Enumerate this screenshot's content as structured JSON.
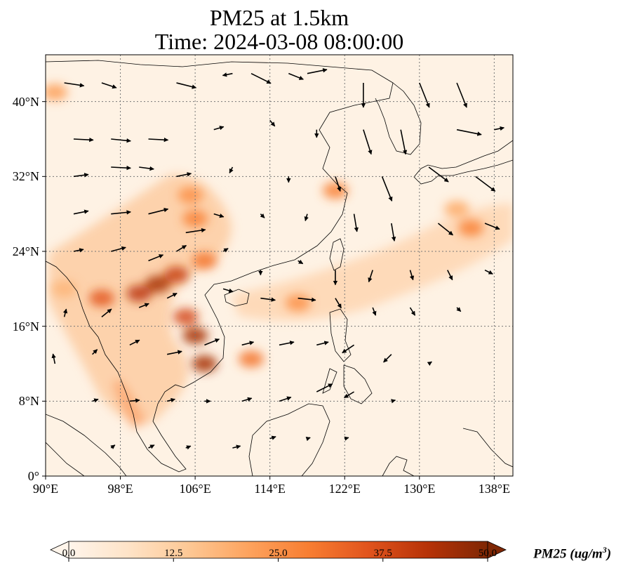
{
  "title": {
    "line1": "PM25 at 1.5km",
    "line2": "Time: 2024-03-08 08:00:00"
  },
  "map": {
    "extent": {
      "lon": [
        90,
        140
      ],
      "lat": [
        0,
        45
      ]
    },
    "lat_ticks": [
      {
        "value": 0,
        "label": "0°"
      },
      {
        "value": 8,
        "label": "8°N"
      },
      {
        "value": 16,
        "label": "16°N"
      },
      {
        "value": 24,
        "label": "24°N"
      },
      {
        "value": 32,
        "label": "32°N"
      },
      {
        "value": 40,
        "label": "40°N"
      }
    ],
    "lon_ticks": [
      {
        "value": 90,
        "label": "90°E"
      },
      {
        "value": 98,
        "label": "98°E"
      },
      {
        "value": 106,
        "label": "106°E"
      },
      {
        "value": 114,
        "label": "114°E"
      },
      {
        "value": 122,
        "label": "122°E"
      },
      {
        "value": 130,
        "label": "130°E"
      },
      {
        "value": 138,
        "label": "138°E"
      }
    ],
    "gridlines": true,
    "field": "PM25 concentration shaded, wind vectors overlaid",
    "pm25_hotspots": [
      {
        "lon": 102,
        "lat": 20.5,
        "value": 45
      },
      {
        "lon": 104,
        "lat": 21.5,
        "value": 40
      },
      {
        "lon": 100,
        "lat": 19.5,
        "value": 42
      },
      {
        "lon": 96,
        "lat": 19,
        "value": 35
      },
      {
        "lon": 106,
        "lat": 15,
        "value": 45
      },
      {
        "lon": 107,
        "lat": 12,
        "value": 45
      },
      {
        "lon": 105,
        "lat": 17,
        "value": 38
      },
      {
        "lon": 107,
        "lat": 23,
        "value": 30
      },
      {
        "lon": 106,
        "lat": 27.5,
        "value": 28
      },
      {
        "lon": 105.5,
        "lat": 30,
        "value": 25
      },
      {
        "lon": 121,
        "lat": 30.5,
        "value": 28
      },
      {
        "lon": 117,
        "lat": 18.5,
        "value": 25
      },
      {
        "lon": 112,
        "lat": 12.5,
        "value": 30
      },
      {
        "lon": 135.5,
        "lat": 26.5,
        "value": 28
      },
      {
        "lon": 134,
        "lat": 28.5,
        "value": 20
      },
      {
        "lon": 91,
        "lat": 41,
        "value": 22
      },
      {
        "lon": 92,
        "lat": 20,
        "value": 18
      }
    ],
    "wind_vectors": [
      [
        92,
        42,
        2,
        -0.3
      ],
      [
        96,
        42,
        1.5,
        -0.5
      ],
      [
        104,
        42,
        2,
        -0.5
      ],
      [
        110,
        43,
        -1,
        -0.2
      ],
      [
        116,
        43,
        1.5,
        -0.6
      ],
      [
        124,
        42,
        0,
        -2.5
      ],
      [
        130,
        42,
        1,
        -2.5
      ],
      [
        134,
        42,
        1,
        -2.5
      ],
      [
        118,
        43,
        2,
        0.4
      ],
      [
        112,
        43,
        2,
        -1
      ],
      [
        93,
        36,
        2,
        -0.1
      ],
      [
        97,
        36,
        2,
        -0.2
      ],
      [
        101,
        36,
        2,
        -0.1
      ],
      [
        108,
        37,
        1,
        0.3
      ],
      [
        114,
        38,
        0.5,
        -0.6
      ],
      [
        119,
        37,
        0,
        -0.8
      ],
      [
        124,
        37,
        0.8,
        -2.5
      ],
      [
        128,
        37,
        0.5,
        -2.5
      ],
      [
        134,
        37,
        2.5,
        -0.5
      ],
      [
        138,
        37,
        1,
        0.2
      ],
      [
        93,
        32,
        1.5,
        0.2
      ],
      [
        97,
        33,
        2,
        -0.1
      ],
      [
        100,
        33,
        1.5,
        -0.2
      ],
      [
        104,
        32,
        1.5,
        0.3
      ],
      [
        110,
        33,
        -0.3,
        -0.6
      ],
      [
        116,
        32,
        0,
        -0.6
      ],
      [
        121,
        32,
        0.5,
        -1.5
      ],
      [
        126,
        32,
        1,
        -2.5
      ],
      [
        131,
        33,
        2,
        -1.5
      ],
      [
        136,
        32,
        2,
        -1.5
      ],
      [
        93,
        28,
        1.5,
        0.3
      ],
      [
        97,
        28,
        2,
        0.2
      ],
      [
        101,
        28,
        2,
        0.5
      ],
      [
        105,
        26,
        2,
        0.3
      ],
      [
        108,
        28,
        1,
        -0.3
      ],
      [
        113,
        28,
        0.4,
        -0.4
      ],
      [
        118,
        28,
        -0.2,
        -0.7
      ],
      [
        123,
        28,
        0.3,
        -1.8
      ],
      [
        127,
        27,
        0.3,
        -1.8
      ],
      [
        132,
        27,
        1.5,
        -1.2
      ],
      [
        137,
        27,
        1.5,
        -0.6
      ],
      [
        93,
        24,
        1,
        0.2
      ],
      [
        97,
        24,
        1.5,
        0.4
      ],
      [
        101,
        23,
        1.5,
        0.6
      ],
      [
        104,
        24,
        1,
        0.6
      ],
      [
        109,
        24,
        0.5,
        0.3
      ],
      [
        113,
        22,
        0,
        -0.5
      ],
      [
        117,
        23,
        0.5,
        -0.3
      ],
      [
        121,
        22,
        0,
        -1.5
      ],
      [
        125,
        22,
        -0.4,
        -1.2
      ],
      [
        129,
        22,
        0.3,
        -1
      ],
      [
        133,
        22,
        0.5,
        -1
      ],
      [
        137,
        22,
        0.8,
        -0.4
      ],
      [
        92,
        17,
        0.2,
        0.8
      ],
      [
        96,
        17,
        1,
        0.8
      ],
      [
        100,
        18,
        1,
        0.4
      ],
      [
        103,
        19,
        1,
        0.5
      ],
      [
        109,
        20,
        1,
        -0.3
      ],
      [
        113,
        19,
        1.5,
        -0.2
      ],
      [
        117,
        19,
        1.8,
        -0.2
      ],
      [
        121,
        19,
        0.6,
        -1
      ],
      [
        125,
        18,
        0.3,
        -0.8
      ],
      [
        129,
        18,
        0.5,
        -0.8
      ],
      [
        134,
        18,
        0.4,
        -0.4
      ],
      [
        91,
        12,
        -0.2,
        1
      ],
      [
        95,
        13,
        0.5,
        0.5
      ],
      [
        99,
        14,
        1,
        0.5
      ],
      [
        103,
        13,
        1.5,
        0.3
      ],
      [
        107,
        14,
        1.5,
        0.6
      ],
      [
        111,
        14,
        1.2,
        0.3
      ],
      [
        115,
        14,
        1.5,
        0.3
      ],
      [
        119,
        14,
        1.2,
        0.3
      ],
      [
        123,
        14,
        -1.2,
        -0.8
      ],
      [
        127,
        13,
        -0.8,
        -0.8
      ],
      [
        131,
        12,
        0.3,
        0.2
      ],
      [
        95,
        8,
        0.6,
        0.2
      ],
      [
        99,
        8,
        1,
        0.1
      ],
      [
        103,
        8,
        0.8,
        0.2
      ],
      [
        107,
        8,
        0.6,
        0
      ],
      [
        111,
        8,
        1,
        0.3
      ],
      [
        115,
        8,
        1.2,
        0.4
      ],
      [
        119,
        9,
        1.6,
        0.8
      ],
      [
        123,
        9,
        -1,
        -0.6
      ],
      [
        127,
        8,
        0.4,
        0.1
      ],
      [
        97,
        3,
        0.4,
        0.3
      ],
      [
        101,
        3,
        0.6,
        0.3
      ],
      [
        105,
        3,
        0.5,
        0.2
      ],
      [
        110,
        3,
        0.8,
        0.2
      ],
      [
        114,
        4,
        0.6,
        0.2
      ],
      [
        118,
        4,
        0.3,
        0.1
      ],
      [
        122,
        4,
        0.4,
        0.1
      ]
    ]
  },
  "colorbar": {
    "label": "PM25 (ug/m",
    "label_sup": "3",
    "label_close": ")",
    "min": 0,
    "max": 50,
    "ticks": [
      "0.0",
      "12.5",
      "25.0",
      "37.5",
      "50.0"
    ],
    "tick_values": [
      0,
      12.5,
      25,
      37.5,
      50
    ],
    "extend": "both",
    "colors": [
      "#fff5eb",
      "#fee3c7",
      "#fdc895",
      "#fda35e",
      "#f87e32",
      "#e1541d",
      "#b63207",
      "#7f2704"
    ]
  }
}
